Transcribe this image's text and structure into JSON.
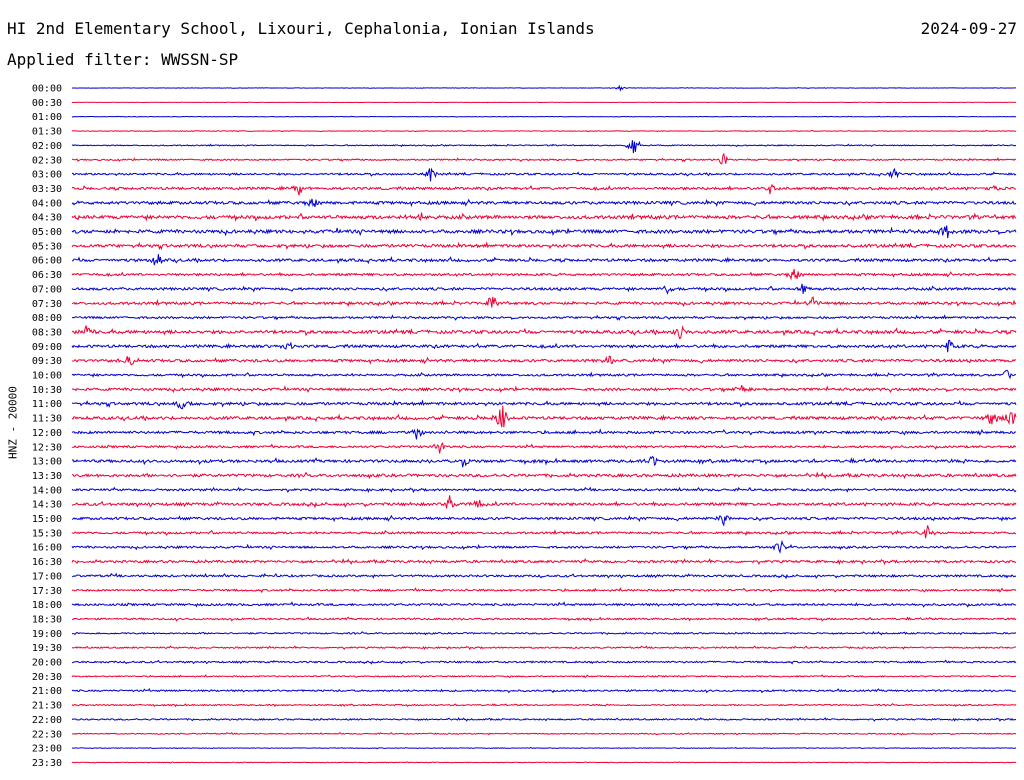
{
  "header": {
    "station": "HI 2nd Elementary School, Lixouri, Cephalonia, Ionian Islands",
    "date": "2024-09-27",
    "filter": "Applied filter: WWSSN-SP"
  },
  "y_axis_label": "HNZ - 20000",
  "colors": {
    "even_trace": "#0000cc",
    "odd_trace": "#ee0033",
    "text": "#000000"
  },
  "chart_data": {
    "type": "helicorder",
    "title": "HI 2nd Elementary School, Lixouri, Cephalonia, Ionian Islands",
    "ylabel": "HNZ - 20000",
    "rows": [
      "00:00",
      "00:30",
      "01:00",
      "01:30",
      "02:00",
      "02:30",
      "03:00",
      "03:30",
      "04:00",
      "04:30",
      "05:00",
      "05:30",
      "06:00",
      "06:30",
      "07:00",
      "07:30",
      "08:00",
      "08:30",
      "09:00",
      "09:30",
      "10:00",
      "10:30",
      "11:00",
      "11:30",
      "12:00",
      "12:30",
      "13:00",
      "13:30",
      "14:00",
      "14:30",
      "15:00",
      "15:30",
      "16:00",
      "16:30",
      "17:00",
      "17:30",
      "18:00",
      "18:30",
      "19:00",
      "19:30",
      "20:00",
      "20:30",
      "21:00",
      "21:30",
      "22:00",
      "22:30",
      "23:00",
      "23:30"
    ],
    "row_noise": [
      0.2,
      0.15,
      0.2,
      0.3,
      0.5,
      0.7,
      0.9,
      1.2,
      1.4,
      1.6,
      1.6,
      1.4,
      1.3,
      1.1,
      1.2,
      1.2,
      1.0,
      1.5,
      1.3,
      1.3,
      1.0,
      1.2,
      1.3,
      1.4,
      1.2,
      1.0,
      1.3,
      1.3,
      1.0,
      1.3,
      1.2,
      1.0,
      1.0,
      1.1,
      1.0,
      0.9,
      1.0,
      0.8,
      0.7,
      0.7,
      0.8,
      0.6,
      0.8,
      0.6,
      0.7,
      0.5,
      0.3,
      0.3
    ],
    "events": [
      {
        "row": 0,
        "t": 0.58,
        "amp": 3
      },
      {
        "row": 4,
        "t": 0.595,
        "amp": 14
      },
      {
        "row": 5,
        "t": 0.69,
        "amp": 8
      },
      {
        "row": 6,
        "t": 0.38,
        "amp": 7
      },
      {
        "row": 6,
        "t": 0.87,
        "amp": 7
      },
      {
        "row": 7,
        "t": 0.24,
        "amp": 9
      },
      {
        "row": 7,
        "t": 0.74,
        "amp": 7
      },
      {
        "row": 7,
        "t": 0.975,
        "amp": 6
      },
      {
        "row": 8,
        "t": 0.255,
        "amp": 7
      },
      {
        "row": 9,
        "t": 0.37,
        "amp": 10
      },
      {
        "row": 10,
        "t": 0.925,
        "amp": 10
      },
      {
        "row": 12,
        "t": 0.09,
        "amp": 10
      },
      {
        "row": 13,
        "t": 0.765,
        "amp": 9
      },
      {
        "row": 14,
        "t": 0.63,
        "amp": 8
      },
      {
        "row": 14,
        "t": 0.775,
        "amp": 6
      },
      {
        "row": 15,
        "t": 0.445,
        "amp": 10
      },
      {
        "row": 15,
        "t": 0.785,
        "amp": 7
      },
      {
        "row": 17,
        "t": 0.015,
        "amp": 7
      },
      {
        "row": 17,
        "t": 0.645,
        "amp": 10
      },
      {
        "row": 18,
        "t": 0.23,
        "amp": 7
      },
      {
        "row": 18,
        "t": 0.93,
        "amp": 9
      },
      {
        "row": 19,
        "t": 0.06,
        "amp": 9
      },
      {
        "row": 19,
        "t": 0.57,
        "amp": 6
      },
      {
        "row": 20,
        "t": 0.99,
        "amp": 9
      },
      {
        "row": 21,
        "t": 0.71,
        "amp": 7
      },
      {
        "row": 22,
        "t": 0.115,
        "amp": 9
      },
      {
        "row": 23,
        "t": 0.455,
        "amp": 18
      },
      {
        "row": 23,
        "t": 0.975,
        "amp": 10
      },
      {
        "row": 23,
        "t": 0.995,
        "amp": 12
      },
      {
        "row": 24,
        "t": 0.365,
        "amp": 8
      },
      {
        "row": 25,
        "t": 0.39,
        "amp": 8
      },
      {
        "row": 26,
        "t": 0.415,
        "amp": 8
      },
      {
        "row": 26,
        "t": 0.615,
        "amp": 9
      },
      {
        "row": 29,
        "t": 0.4,
        "amp": 9
      },
      {
        "row": 29,
        "t": 0.43,
        "amp": 6
      },
      {
        "row": 30,
        "t": 0.69,
        "amp": 7
      },
      {
        "row": 31,
        "t": 0.905,
        "amp": 10
      },
      {
        "row": 32,
        "t": 0.75,
        "amp": 7
      }
    ]
  }
}
